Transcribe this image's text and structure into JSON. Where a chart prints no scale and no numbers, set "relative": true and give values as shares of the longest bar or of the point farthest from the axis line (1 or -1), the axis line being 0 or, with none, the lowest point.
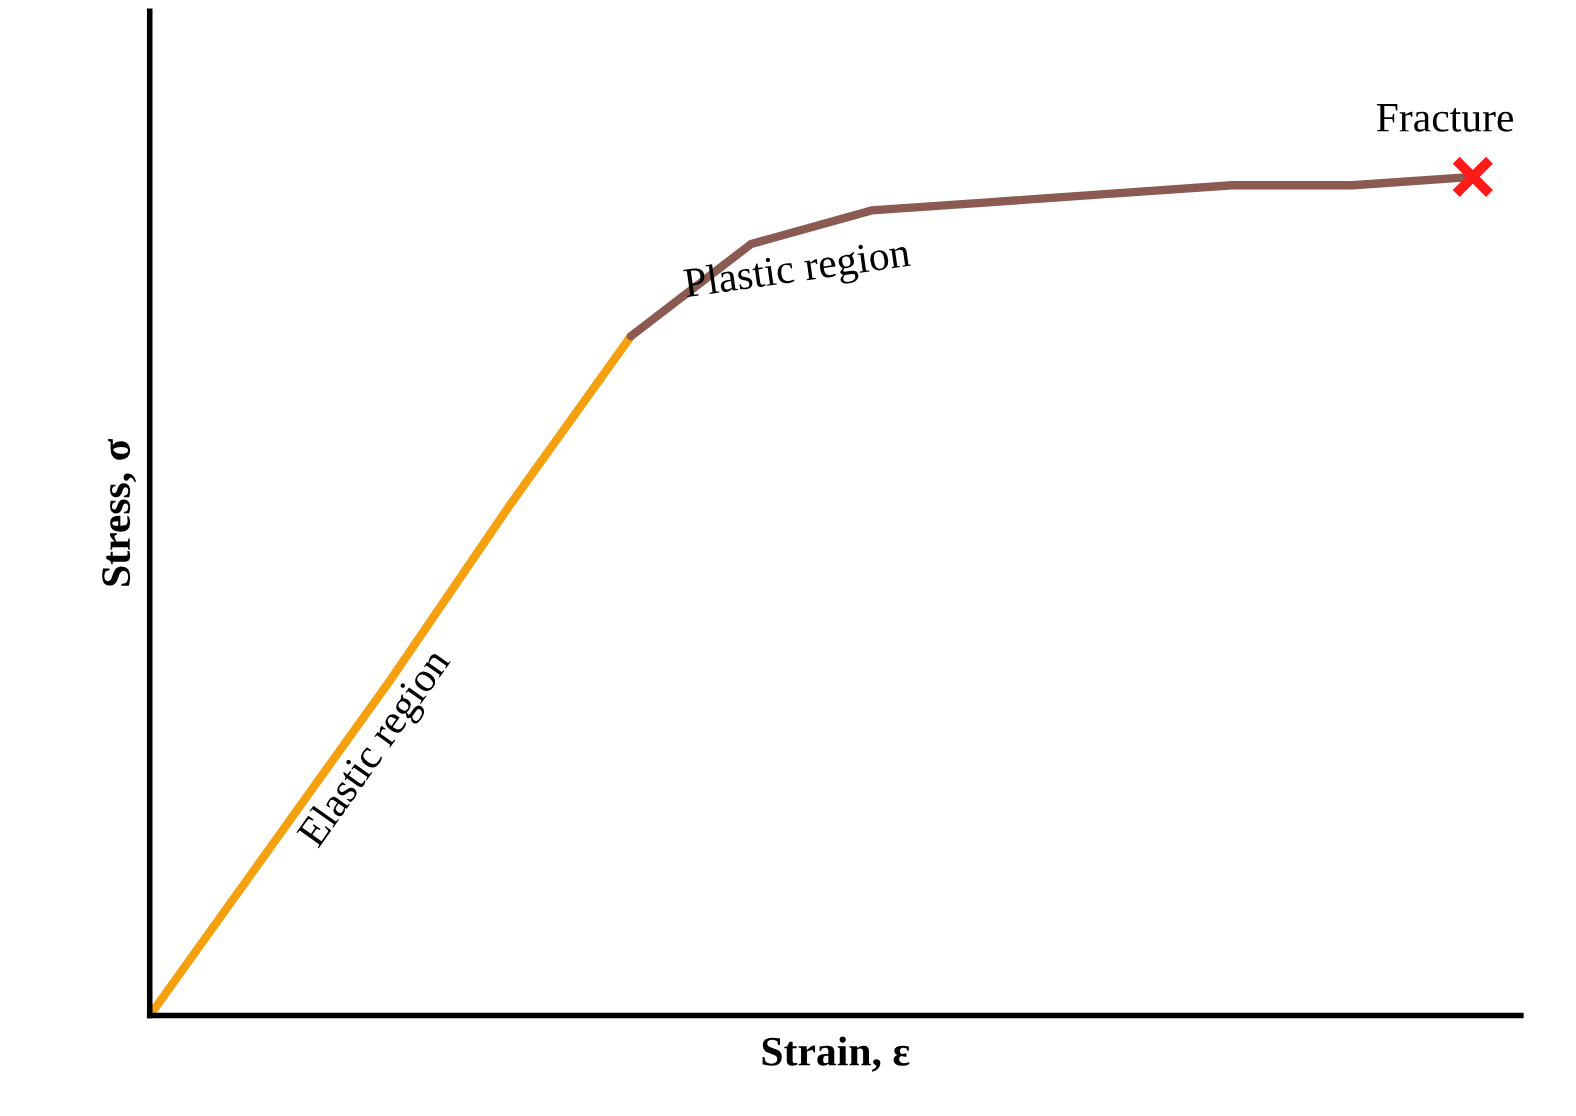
{
  "chart_data": {
    "type": "line",
    "relative": true,
    "xlabel": "Strain, ε",
    "ylabel": "Stress, σ",
    "categories": [
      null,
      null,
      null,
      null,
      null,
      null,
      null,
      null,
      null,
      null,
      null,
      null
    ],
    "series": [
      {
        "values": [
          0,
          0.2,
          0.4,
          0.61,
          0.81,
          null,
          null,
          null,
          null,
          null,
          null,
          null
        ],
        "color": "#f5a00f"
      },
      {
        "values": [
          null,
          null,
          null,
          null,
          0.81,
          0.92,
          0.96,
          0.97,
          0.98,
          0.99,
          0.99,
          1
        ],
        "color": "#8b5a52"
      }
    ],
    "annotations": [
      "Elastic region",
      "Plastic region",
      "Fracture"
    ]
  }
}
